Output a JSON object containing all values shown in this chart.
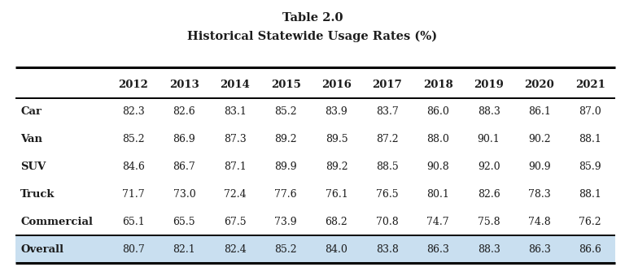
{
  "title_line1": "Table 2.0",
  "title_line2": "Historical Statewide Usage Rates (%)",
  "columns": [
    "2012",
    "2013",
    "2014",
    "2015",
    "2016",
    "2017",
    "2018",
    "2019",
    "2020",
    "2021"
  ],
  "rows": [
    {
      "label": "Car",
      "values": [
        "82.3",
        "82.6",
        "83.1",
        "85.2",
        "83.9",
        "83.7",
        "86.0",
        "88.3",
        "86.1",
        "87.0"
      ],
      "bold_label": true,
      "highlight": false
    },
    {
      "label": "Van",
      "values": [
        "85.2",
        "86.9",
        "87.3",
        "89.2",
        "89.5",
        "87.2",
        "88.0",
        "90.1",
        "90.2",
        "88.1"
      ],
      "bold_label": true,
      "highlight": false
    },
    {
      "label": "SUV",
      "values": [
        "84.6",
        "86.7",
        "87.1",
        "89.9",
        "89.2",
        "88.5",
        "90.8",
        "92.0",
        "90.9",
        "85.9"
      ],
      "bold_label": true,
      "highlight": false
    },
    {
      "label": "Truck",
      "values": [
        "71.7",
        "73.0",
        "72.4",
        "77.6",
        "76.1",
        "76.5",
        "80.1",
        "82.6",
        "78.3",
        "88.1"
      ],
      "bold_label": true,
      "highlight": false
    },
    {
      "label": "Commercial",
      "values": [
        "65.1",
        "65.5",
        "67.5",
        "73.9",
        "68.2",
        "70.8",
        "74.7",
        "75.8",
        "74.8",
        "76.2"
      ],
      "bold_label": true,
      "highlight": false
    },
    {
      "label": "Overall",
      "values": [
        "80.7",
        "82.1",
        "82.4",
        "85.2",
        "84.0",
        "83.8",
        "86.3",
        "88.3",
        "86.3",
        "86.6"
      ],
      "bold_label": true,
      "highlight": true
    }
  ],
  "highlight_color": "#c9dff0",
  "bg_color": "#ffffff",
  "text_color": "#1c1c1c",
  "title_fontsize": 10.5,
  "header_fontsize": 9.5,
  "data_fontsize": 9.0,
  "label_fontsize": 9.5
}
